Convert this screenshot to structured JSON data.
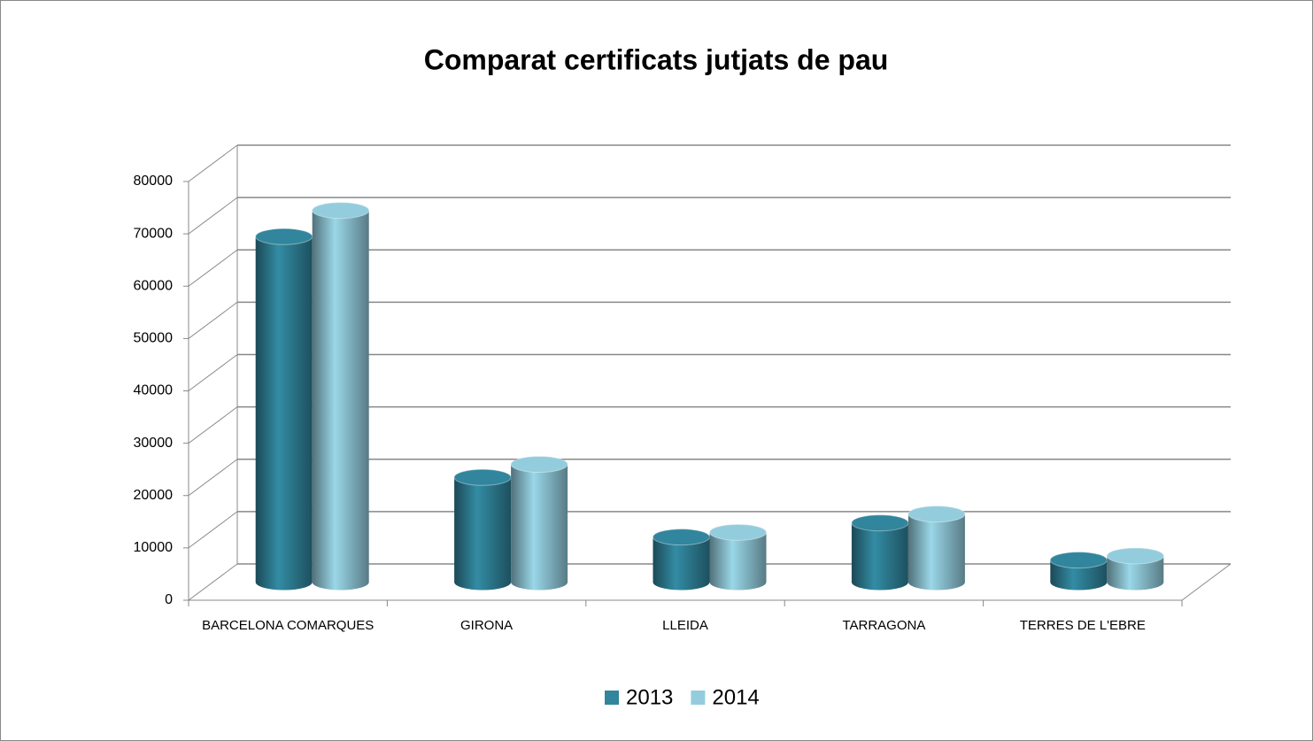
{
  "chart_data": {
    "type": "bar",
    "title": "Comparat certificats jutjats de pau",
    "categories": [
      "BARCELONA COMARQUES",
      "GIRONA",
      "LLEIDA",
      "TARRAGONA",
      "TERRES DE L'EBRE"
    ],
    "series": [
      {
        "name": "2013",
        "color": "#31859c",
        "values": [
          66000,
          20000,
          8600,
          11300,
          4200
        ]
      },
      {
        "name": "2014",
        "color": "#93cddd",
        "values": [
          71000,
          22500,
          9500,
          13000,
          5000
        ]
      }
    ],
    "ylim": [
      0,
      80000
    ],
    "yticks": [
      0,
      10000,
      20000,
      30000,
      40000,
      50000,
      60000,
      70000,
      80000
    ],
    "grid": true,
    "legend": "bottom"
  }
}
